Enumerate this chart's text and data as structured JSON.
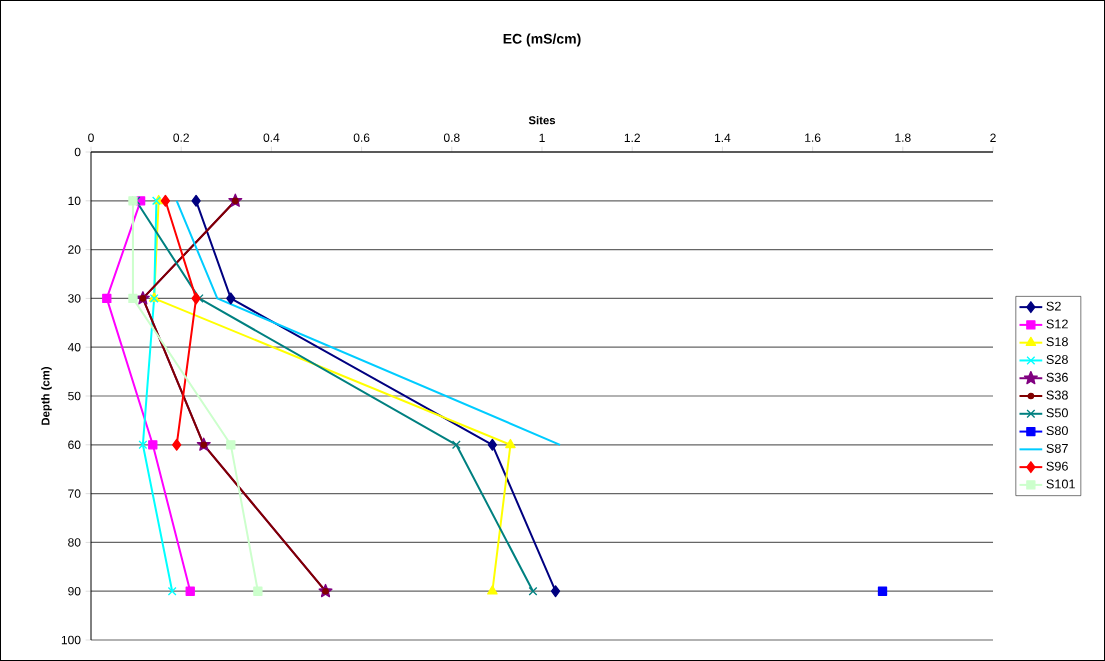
{
  "chart_data": {
    "type": "line",
    "title": "EC (mS/cm)",
    "xlabel": "Sites",
    "ylabel": "Depth (cm)",
    "xlim": [
      0,
      2
    ],
    "xticks": [
      0,
      0.2,
      0.4,
      0.6,
      0.8,
      1,
      1.2,
      1.4,
      1.6,
      1.8,
      2
    ],
    "ylim": [
      100,
      0
    ],
    "yticks": [
      0,
      10,
      20,
      30,
      40,
      50,
      60,
      70,
      80,
      90,
      100
    ],
    "grid": "y",
    "legend": "right",
    "series": [
      {
        "name": "S2",
        "color": "#000080",
        "marker": "diamond",
        "x": [
          0.233,
          0.31,
          0.89,
          1.03
        ],
        "values": [
          10,
          30,
          60,
          90
        ]
      },
      {
        "name": "S12",
        "color": "#ff00ff",
        "marker": "square",
        "x": [
          0.11,
          0.035,
          0.137,
          0.22
        ],
        "values": [
          10,
          30,
          60,
          90
        ]
      },
      {
        "name": "S18",
        "color": "#ffff00",
        "marker": "triangle",
        "x": [
          0.15,
          0.14,
          0.93,
          0.89
        ],
        "values": [
          10,
          30,
          60,
          90
        ]
      },
      {
        "name": "S28",
        "color": "#00ffff",
        "marker": "cross",
        "x": [
          0.145,
          0.14,
          0.115,
          0.18
        ],
        "values": [
          10,
          30,
          60,
          90
        ]
      },
      {
        "name": "S36",
        "color": "#800080",
        "marker": "star",
        "x": [
          0.32,
          0.115,
          0.25,
          0.52
        ],
        "values": [
          10,
          30,
          60,
          90
        ]
      },
      {
        "name": "S38",
        "color": "#800000",
        "marker": "circle",
        "x": [
          0.32,
          0.115,
          0.25,
          0.52
        ],
        "values": [
          10,
          30,
          60,
          90
        ]
      },
      {
        "name": "S50",
        "color": "#008080",
        "marker": "cross",
        "x": [
          0.1,
          0.24,
          0.81,
          0.98
        ],
        "values": [
          10,
          30,
          60,
          90
        ]
      },
      {
        "name": "S80",
        "color": "#0000ff",
        "marker": "square",
        "x": [
          1.755
        ],
        "values": [
          90
        ]
      },
      {
        "name": "S87",
        "color": "#00ccff",
        "marker": "none",
        "x": [
          0.19,
          0.28,
          1.04
        ],
        "values": [
          10,
          30,
          60
        ]
      },
      {
        "name": "S96",
        "color": "#ff0000",
        "marker": "diamond",
        "x": [
          0.165,
          0.233,
          0.19
        ],
        "values": [
          10,
          30,
          60
        ]
      },
      {
        "name": "S101",
        "color": "#ccffcc",
        "marker": "square",
        "x": [
          0.093,
          0.093,
          0.31,
          0.37
        ],
        "values": [
          10,
          30,
          60,
          90
        ]
      }
    ]
  }
}
